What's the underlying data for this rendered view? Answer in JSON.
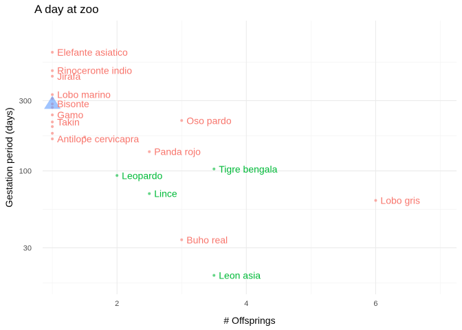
{
  "chart_data": {
    "type": "scatter",
    "title": "A day at zoo",
    "xlabel": "# Offsprings",
    "ylabel": "Gestation period (days)",
    "xlim": [
      0.85,
      7.25
    ],
    "ylim": [
      14.5,
      1050
    ],
    "y_scale": "log10",
    "x_ticks": [
      2,
      4,
      6
    ],
    "x_minor_ticks": [
      1,
      3,
      5,
      7
    ],
    "y_ticks": [
      30,
      100,
      300
    ],
    "y_tick_labels": [
      "30",
      "100",
      "300"
    ],
    "y_minor_ticks": [
      17.3,
      54.8,
      173,
      548
    ],
    "grid": true,
    "colors": {
      "group_a": "#F8766D",
      "group_b": "#00BA38",
      "highlight": "#619CFF"
    },
    "points": [
      {
        "label": "Elefante asiatico",
        "x": 1,
        "y": 640,
        "group": "group_a"
      },
      {
        "label": "Rinoceronte indio",
        "x": 1,
        "y": 480,
        "group": "group_a"
      },
      {
        "label": "Jirafa",
        "x": 1,
        "y": 440,
        "group": "group_a"
      },
      {
        "label": "Lobo marino",
        "x": 1,
        "y": 330,
        "group": "group_a"
      },
      {
        "label": "Bisonte",
        "x": 1,
        "y": 285,
        "group": "group_a"
      },
      {
        "label": "Gamo",
        "x": 1,
        "y": 240,
        "group": "group_a"
      },
      {
        "label": "Takin",
        "x": 1,
        "y": 215,
        "group": "group_a"
      },
      {
        "label": "Antilope cervicapra",
        "x": 1,
        "y": 165,
        "group": "group_a"
      },
      {
        "label": "",
        "x": 1,
        "y": 310,
        "group": "group_a"
      },
      {
        "label": "",
        "x": 1,
        "y": 270,
        "group": "group_a"
      },
      {
        "label": "",
        "x": 1,
        "y": 200,
        "group": "group_a"
      },
      {
        "label": "",
        "x": 1,
        "y": 180,
        "group": "group_a"
      },
      {
        "label": "",
        "x": 1.5,
        "y": 170,
        "group": "group_a"
      },
      {
        "label": "Oso pardo",
        "x": 3,
        "y": 220,
        "group": "group_a"
      },
      {
        "label": "Panda rojo",
        "x": 2.5,
        "y": 135,
        "group": "group_a"
      },
      {
        "label": "Tigre bengala",
        "x": 3.5,
        "y": 103,
        "group": "group_b"
      },
      {
        "label": "Leopardo",
        "x": 2,
        "y": 93,
        "group": "group_b"
      },
      {
        "label": "Lince",
        "x": 2.5,
        "y": 70,
        "group": "group_b"
      },
      {
        "label": "Lobo gris",
        "x": 6,
        "y": 63,
        "group": "group_a"
      },
      {
        "label": "Buho real",
        "x": 3,
        "y": 34,
        "group": "group_a"
      },
      {
        "label": "Leon asia",
        "x": 3.5,
        "y": 19.5,
        "group": "group_b"
      }
    ],
    "highlight_marker": {
      "shape": "triangle",
      "x": 1,
      "y": 285,
      "group": "highlight"
    }
  }
}
